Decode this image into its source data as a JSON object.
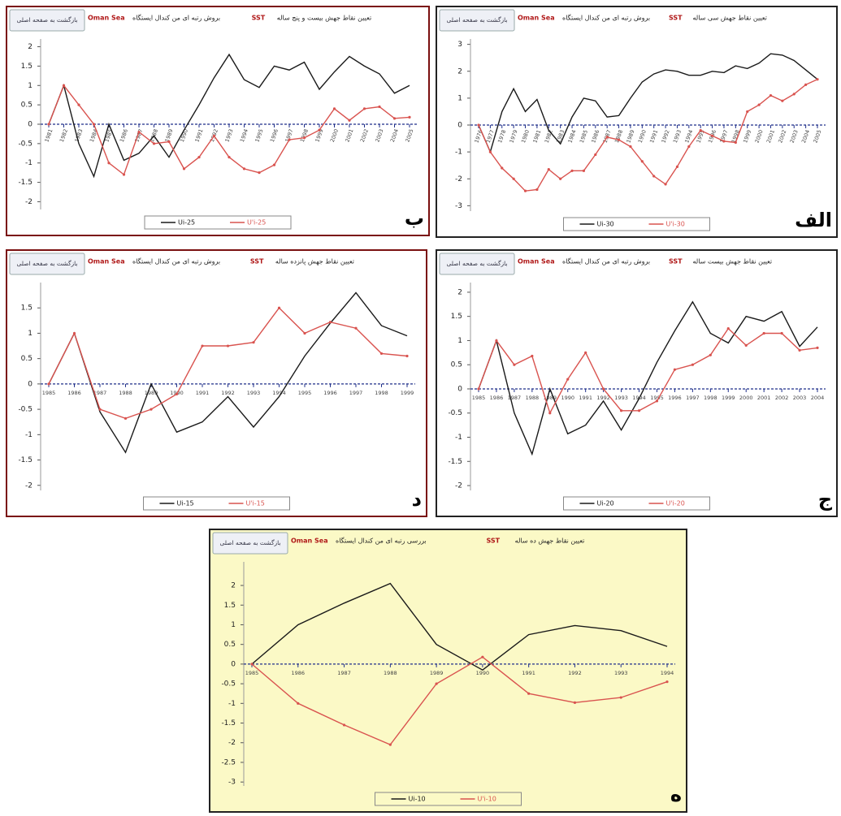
{
  "chart_data": [
    {
      "type": "line",
      "title": "تعیین نقاط جهش بیست و پنج ساله",
      "panel_label": "ب",
      "annotations": [
        "بازگشت به صفحه اصلی",
        "Oman Sea",
        "بروش رتبه ای من کندال ایستگاه",
        "SST"
      ],
      "categories": [
        "1981",
        "1982",
        "1983",
        "1984",
        "1985",
        "1986",
        "1987",
        "1988",
        "1989",
        "1990",
        "1991",
        "1992",
        "1993",
        "1994",
        "1995",
        "1996",
        "1997",
        "1998",
        "1999",
        "2000",
        "2001",
        "2002",
        "2003",
        "2004",
        "2005"
      ],
      "series": [
        {
          "name": "Ui-25",
          "color": "#1a1a1a",
          "values": [
            0,
            1,
            -0.5,
            -1.35,
            0,
            -0.93,
            -0.75,
            -0.3,
            -0.85,
            -0.15,
            0.5,
            1.2,
            1.8,
            1.15,
            0.95,
            1.5,
            1.4,
            1.6,
            0.9,
            1.35,
            1.75,
            1.5,
            1.3,
            0.8,
            1.0
          ]
        },
        {
          "name": "U'i-25",
          "color": "#d9534f",
          "values": [
            0,
            1,
            0.5,
            0,
            -1,
            -1.3,
            -0.2,
            -0.5,
            -0.45,
            -1.15,
            -0.85,
            -0.3,
            -0.85,
            -1.15,
            -1.25,
            -1.05,
            -0.4,
            -0.35,
            -0.15,
            0.4,
            0.1,
            0.4,
            0.45,
            0.15,
            0.18
          ]
        }
      ],
      "ylim": [
        -2.2,
        2.2
      ],
      "yticks": [
        -2,
        -1.5,
        -1,
        -0.5,
        0,
        0.5,
        1,
        1.5,
        2
      ]
    },
    {
      "type": "line",
      "title": "تعیین نقاط جهش سی ساله",
      "panel_label": "الف",
      "annotations": [
        "بازگشت به صفحه اصلی",
        "Oman Sea",
        "بروش رتبه ای من کندال ایستگاه",
        "SST"
      ],
      "categories": [
        "1976",
        "1977",
        "1978",
        "1979",
        "1980",
        "1981",
        "1982",
        "1983",
        "1984",
        "1985",
        "1986",
        "1987",
        "1988",
        "1989",
        "1990",
        "1991",
        "1992",
        "1993",
        "1994",
        "1995",
        "1996",
        "1997",
        "1998",
        "1999",
        "2000",
        "2001",
        "2002",
        "2003",
        "2004",
        "2005"
      ],
      "series": [
        {
          "name": "Ui-30",
          "color": "#1a1a1a",
          "values": [
            0,
            -1,
            0.5,
            1.35,
            0.5,
            0.95,
            -0.2,
            -0.7,
            0.3,
            1.0,
            0.9,
            0.3,
            0.35,
            1.0,
            1.6,
            1.9,
            2.05,
            2.0,
            1.85,
            1.85,
            2.0,
            1.95,
            2.2,
            2.1,
            2.3,
            2.65,
            2.6,
            2.4,
            2.05,
            1.7
          ]
        },
        {
          "name": "U'i-30",
          "color": "#d9534f",
          "values": [
            0,
            -1,
            -1.6,
            -2.0,
            -2.45,
            -2.4,
            -1.65,
            -2.0,
            -1.7,
            -1.7,
            -1.1,
            -0.45,
            -0.55,
            -0.8,
            -1.35,
            -1.9,
            -2.2,
            -1.55,
            -0.8,
            -0.2,
            -0.4,
            -0.6,
            -0.65,
            0.5,
            0.75,
            1.1,
            0.9,
            1.15,
            1.5,
            1.7
          ]
        }
      ],
      "ylim": [
        -3.2,
        3.2
      ],
      "yticks": [
        -3,
        -2,
        -1,
        0,
        1,
        2,
        3
      ]
    },
    {
      "type": "line",
      "title": "تعیین نقاط جهش پانزده ساله",
      "panel_label": "د",
      "annotations": [
        "بازگشت به صفحه اصلی",
        "Oman Sea",
        "بروش رتبه ای من کندال ایستگاه",
        "SST"
      ],
      "categories": [
        "1985",
        "1986",
        "1987",
        "1988",
        "1989",
        "1990",
        "1991",
        "1992",
        "1993",
        "1994",
        "1995",
        "1996",
        "1997",
        "1998",
        "1999"
      ],
      "series": [
        {
          "name": "Ui-15",
          "color": "#1a1a1a",
          "values": [
            0,
            1,
            -0.55,
            -1.35,
            0,
            -0.95,
            -0.75,
            -0.25,
            -0.85,
            -0.25,
            0.55,
            1.2,
            1.8,
            1.15,
            0.95
          ]
        },
        {
          "name": "U'i-15",
          "color": "#d9534f",
          "values": [
            0,
            1,
            -0.5,
            -0.68,
            -0.5,
            -0.2,
            0.75,
            0.75,
            0.82,
            1.5,
            1.0,
            1.22,
            1.1,
            0.6,
            0.55
          ]
        }
      ],
      "ylim": [
        -2.1,
        2
      ],
      "yticks": [
        -2,
        -1.5,
        -1,
        -0.5,
        0,
        0.5,
        1,
        1.5
      ]
    },
    {
      "type": "line",
      "title": "تعیین نقاط جهش بیست ساله",
      "panel_label": "ج",
      "annotations": [
        "بازگشت به صفحه اصلی",
        "Oman Sea",
        "بروش رتبه ای من کندال ایستگاه",
        "SST"
      ],
      "categories": [
        "1985",
        "1986",
        "1987",
        "1988",
        "1989",
        "1990",
        "1991",
        "1992",
        "1993",
        "1994",
        "1995",
        "1996",
        "1997",
        "1998",
        "1999",
        "2000",
        "2001",
        "2002",
        "2003",
        "2004"
      ],
      "series": [
        {
          "name": "Ui-20",
          "color": "#1a1a1a",
          "values": [
            0,
            1,
            -0.5,
            -1.35,
            0,
            -0.93,
            -0.75,
            -0.25,
            -0.85,
            -0.2,
            0.55,
            1.2,
            1.8,
            1.15,
            0.95,
            1.5,
            1.4,
            1.6,
            0.88,
            1.28
          ]
        },
        {
          "name": "U'i-20",
          "color": "#d9534f",
          "values": [
            0,
            1,
            0.5,
            0.68,
            -0.5,
            0.2,
            0.75,
            0,
            -0.45,
            -0.45,
            -0.25,
            0.4,
            0.5,
            0.7,
            1.25,
            0.9,
            1.15,
            1.15,
            0.8,
            0.85
          ]
        }
      ],
      "ylim": [
        -2.1,
        2.2
      ],
      "yticks": [
        -2,
        -1.5,
        -1,
        -0.5,
        0,
        0.5,
        1,
        1.5,
        2
      ]
    },
    {
      "type": "line",
      "title": "تعیین نقاط جهش ده ساله",
      "panel_label": "ه",
      "annotations": [
        "بازگشت به صفحه اصلی",
        "Oman Sea",
        "بررسی رتبه ای من کندال ایستگاه",
        "SST"
      ],
      "categories": [
        "1985",
        "1986",
        "1987",
        "1988",
        "1989",
        "1990",
        "1991",
        "1992",
        "1993",
        "1994"
      ],
      "series": [
        {
          "name": "Ui-10",
          "color": "#1a1a1a",
          "values": [
            0,
            1,
            1.55,
            2.05,
            0.5,
            -0.15,
            0.75,
            0.98,
            0.85,
            0.45
          ]
        },
        {
          "name": "U'i-10",
          "color": "#d9534f",
          "values": [
            0,
            -1,
            -1.55,
            -2.05,
            -0.5,
            0.18,
            -0.75,
            -0.98,
            -0.85,
            -0.45
          ]
        }
      ],
      "ylim": [
        -3.1,
        2.6
      ],
      "yticks": [
        -3,
        -2.5,
        -2,
        -1.5,
        -1,
        -0.5,
        0,
        0.5,
        1,
        1.5,
        2
      ]
    }
  ]
}
